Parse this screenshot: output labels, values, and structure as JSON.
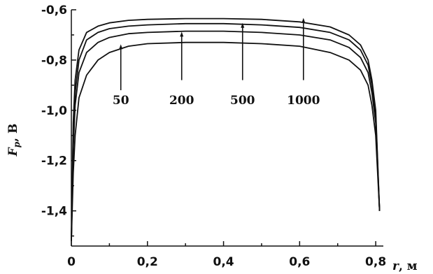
{
  "chart_data": {
    "type": "line",
    "title": "",
    "ylabel_main": "F",
    "ylabel_sub": "p",
    "ylabel_unit": ", В",
    "xlabel_var": "r",
    "xlabel_unit": ", м",
    "xlim": [
      0,
      0.82
    ],
    "ylim": [
      -1.54,
      -0.6
    ],
    "x_ticks": [
      {
        "value": 0,
        "label": "0"
      },
      {
        "value": 0.2,
        "label": "0,2"
      },
      {
        "value": 0.4,
        "label": "0,4"
      },
      {
        "value": 0.6,
        "label": "0,6"
      },
      {
        "value": 0.8,
        "label": "0,8"
      }
    ],
    "y_ticks": [
      {
        "value": -0.6,
        "label": "-0,6"
      },
      {
        "value": -0.8,
        "label": "-0,8"
      },
      {
        "value": -1.0,
        "label": "-1,0"
      },
      {
        "value": -1.2,
        "label": "-1,2"
      },
      {
        "value": -1.4,
        "label": "-1,4"
      }
    ],
    "series": [
      {
        "name": "50",
        "plateau": -0.73,
        "x": [
          0,
          0.005,
          0.01,
          0.02,
          0.04,
          0.07,
          0.1,
          0.15,
          0.2,
          0.3,
          0.4,
          0.5,
          0.6,
          0.68,
          0.73,
          0.76,
          0.78,
          0.79,
          0.8,
          0.81
        ],
        "values": [
          -1.52,
          -1.25,
          -1.1,
          -0.95,
          -0.86,
          -0.8,
          -0.77,
          -0.745,
          -0.735,
          -0.73,
          -0.73,
          -0.735,
          -0.745,
          -0.77,
          -0.8,
          -0.84,
          -0.9,
          -0.98,
          -1.1,
          -1.4
        ]
      },
      {
        "name": "200",
        "plateau": -0.685,
        "x": [
          0,
          0.005,
          0.01,
          0.02,
          0.04,
          0.07,
          0.1,
          0.15,
          0.2,
          0.3,
          0.4,
          0.5,
          0.6,
          0.68,
          0.73,
          0.76,
          0.78,
          0.79,
          0.8,
          0.81
        ],
        "values": [
          -1.52,
          -1.15,
          -0.98,
          -0.85,
          -0.77,
          -0.73,
          -0.71,
          -0.695,
          -0.69,
          -0.685,
          -0.685,
          -0.69,
          -0.7,
          -0.72,
          -0.75,
          -0.79,
          -0.85,
          -0.93,
          -1.05,
          -1.4
        ]
      },
      {
        "name": "500",
        "plateau": -0.655,
        "x": [
          0,
          0.005,
          0.01,
          0.02,
          0.04,
          0.07,
          0.1,
          0.15,
          0.2,
          0.3,
          0.4,
          0.5,
          0.6,
          0.68,
          0.73,
          0.76,
          0.78,
          0.79,
          0.8,
          0.81
        ],
        "values": [
          -1.52,
          -1.1,
          -0.93,
          -0.8,
          -0.72,
          -0.69,
          -0.675,
          -0.665,
          -0.66,
          -0.655,
          -0.655,
          -0.66,
          -0.67,
          -0.69,
          -0.72,
          -0.76,
          -0.82,
          -0.9,
          -1.02,
          -1.4
        ]
      },
      {
        "name": "1000",
        "plateau": -0.635,
        "x": [
          0,
          0.005,
          0.01,
          0.02,
          0.04,
          0.07,
          0.1,
          0.15,
          0.2,
          0.3,
          0.4,
          0.5,
          0.6,
          0.68,
          0.73,
          0.76,
          0.78,
          0.79,
          0.8,
          0.81
        ],
        "values": [
          -1.52,
          -1.05,
          -0.88,
          -0.76,
          -0.69,
          -0.665,
          -0.652,
          -0.642,
          -0.638,
          -0.635,
          -0.635,
          -0.638,
          -0.648,
          -0.668,
          -0.7,
          -0.74,
          -0.8,
          -0.88,
          -1.0,
          -1.4
        ]
      }
    ],
    "annotations": [
      {
        "label": "50",
        "x": 0.13,
        "arrow_from_y": -0.92,
        "arrow_to_y": -0.74
      },
      {
        "label": "200",
        "x": 0.29,
        "arrow_from_y": -0.88,
        "arrow_to_y": -0.69
      },
      {
        "label": "500",
        "x": 0.45,
        "arrow_from_y": -0.88,
        "arrow_to_y": -0.655
      },
      {
        "label": "1000",
        "x": 0.61,
        "arrow_from_y": -0.88,
        "arrow_to_y": -0.635
      }
    ],
    "grid": false,
    "legend": "none"
  }
}
